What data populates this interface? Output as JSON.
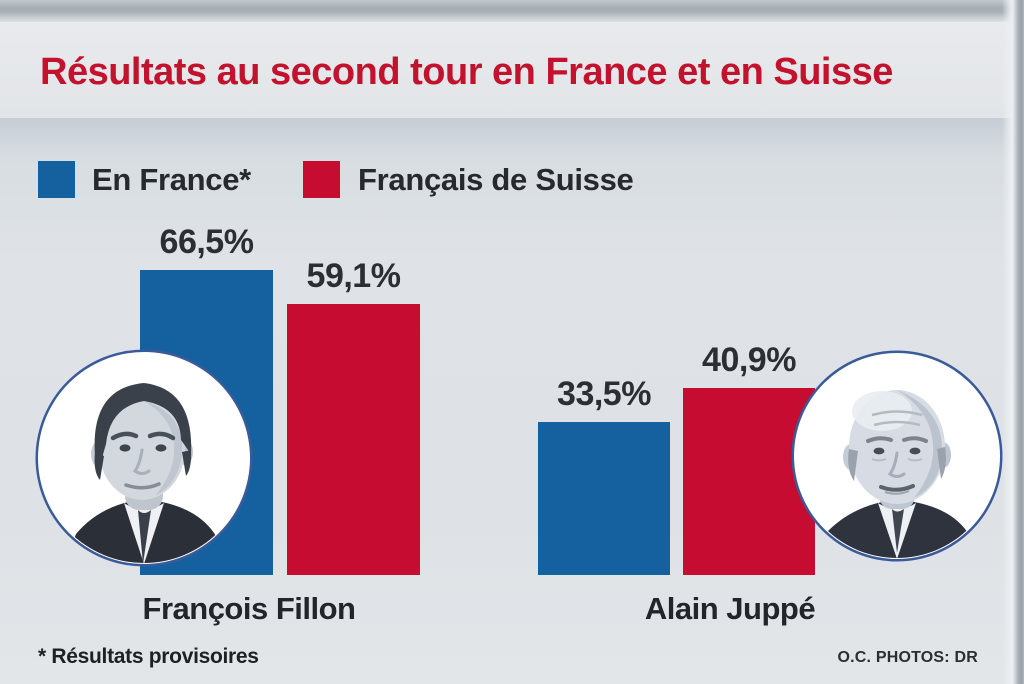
{
  "chart_data": {
    "type": "bar",
    "title": "Résultats au second tour en France et en Suisse",
    "categories": [
      "François Fillon",
      "Alain Juppé"
    ],
    "series": [
      {
        "name": "En France*",
        "color": "#15619f",
        "values": [
          66.5,
          33.5
        ],
        "display_values": [
          "66,5%",
          "33,5%"
        ]
      },
      {
        "name": "Français de Suisse",
        "color": "#c60c30",
        "values": [
          59.1,
          40.9
        ],
        "display_values": [
          "59,1%",
          "40,9%"
        ]
      }
    ],
    "ylim": [
      0,
      70
    ],
    "grid": false,
    "legend_position": "top-left",
    "footnote": "* Résultats provisoires",
    "credit": "O.C. PHOTOS: DR"
  },
  "colors": {
    "title_red": "#c3122d",
    "bar_blue": "#15619f",
    "bar_red": "#c60c30"
  }
}
